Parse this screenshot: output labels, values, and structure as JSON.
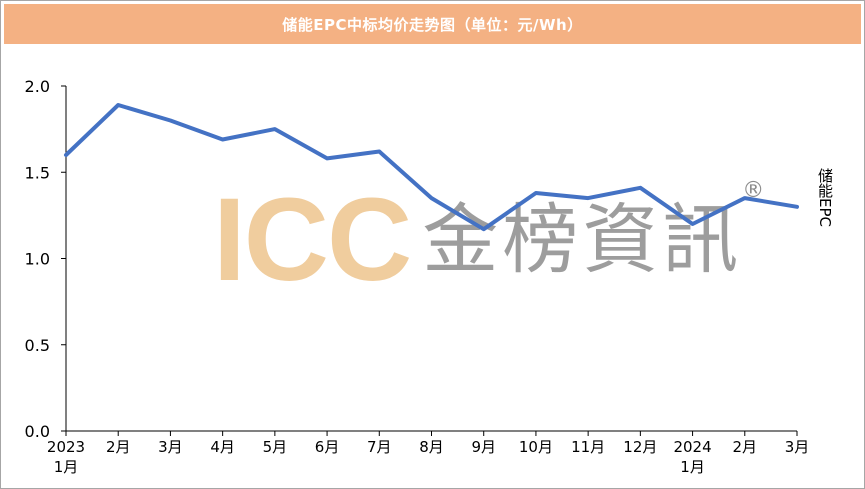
{
  "chart_data": {
    "type": "line",
    "title": "储能EPC中标均价走势图（单位：元/Wh）",
    "categories": [
      [
        "2023",
        "1月"
      ],
      [
        "2月"
      ],
      [
        "3月"
      ],
      [
        "4月"
      ],
      [
        "5月"
      ],
      [
        "6月"
      ],
      [
        "7月"
      ],
      [
        "8月"
      ],
      [
        "9月"
      ],
      [
        "10月"
      ],
      [
        "11月"
      ],
      [
        "12月"
      ],
      [
        "2024",
        "1月"
      ],
      [
        "2月"
      ],
      [
        "3月"
      ]
    ],
    "series": [
      {
        "name": "储能EPC",
        "values": [
          1.6,
          1.89,
          1.8,
          1.69,
          1.75,
          1.58,
          1.62,
          1.35,
          1.17,
          1.38,
          1.35,
          1.41,
          1.2,
          1.35,
          1.3
        ],
        "color": "#4472c4"
      }
    ],
    "ylim": [
      0,
      2.0
    ],
    "yticks": [
      "0.0",
      "0.5",
      "1.0",
      "1.5",
      "2.0"
    ],
    "grid": false,
    "legend": "right"
  },
  "watermark": {
    "logo": "ICC",
    "text": "金榜資訊",
    "mark": "®"
  }
}
